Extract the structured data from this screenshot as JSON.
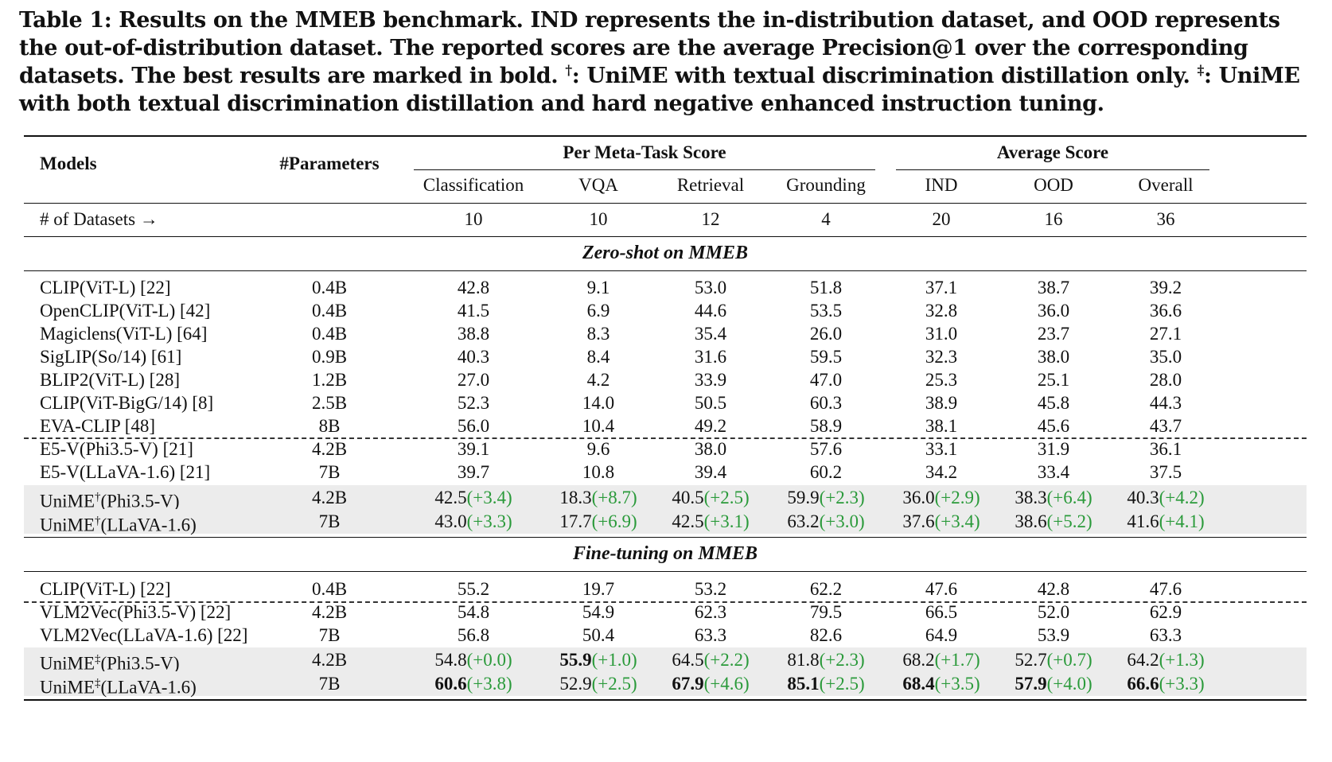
{
  "caption": {
    "part1": "Table 1: Results on the MMEB benchmark. IND represents the in-distribution dataset, and OOD represents the out-of-distribution dataset. The reported scores are the average Precision@1 over the corresponding datasets. The best results are marked in bold.",
    "dagger": "†",
    "part2": ": UniME with textual discrimination distillation only.",
    "ddagger": "‡",
    "part3": ": UniME with both textual discrimination distillation and hard negative enhanced instruction tuning."
  },
  "header": {
    "models": "Models",
    "params": "#Parameters",
    "group1": "Per Meta-Task Score",
    "group2": "Average Score",
    "cols": [
      "Classification",
      "VQA",
      "Retrieval",
      "Grounding",
      "IND",
      "OOD",
      "Overall"
    ],
    "datasets_label": "# of Datasets →",
    "datasets": [
      "10",
      "10",
      "12",
      "4",
      "20",
      "16",
      "36"
    ]
  },
  "zero_shot": {
    "title": "Zero-shot on MMEB",
    "rows": [
      {
        "model": "CLIP(ViT-L) [22]",
        "params": "0.4B",
        "vals": [
          "42.8",
          "9.1",
          "53.0",
          "51.8",
          "37.1",
          "38.7",
          "39.2"
        ]
      },
      {
        "model": "OpenCLIP(ViT-L) [42]",
        "params": "0.4B",
        "vals": [
          "41.5",
          "6.9",
          "44.6",
          "53.5",
          "32.8",
          "36.0",
          "36.6"
        ]
      },
      {
        "model": "Magiclens(ViT-L) [64]",
        "params": "0.4B",
        "vals": [
          "38.8",
          "8.3",
          "35.4",
          "26.0",
          "31.0",
          "23.7",
          "27.1"
        ]
      },
      {
        "model": "SigLIP(So/14) [61]",
        "params": "0.9B",
        "vals": [
          "40.3",
          "8.4",
          "31.6",
          "59.5",
          "32.3",
          "38.0",
          "35.0"
        ]
      },
      {
        "model": "BLIP2(ViT-L) [28]",
        "params": "1.2B",
        "vals": [
          "27.0",
          "4.2",
          "33.9",
          "47.0",
          "25.3",
          "25.1",
          "28.0"
        ]
      },
      {
        "model": "CLIP(ViT-BigG/14) [8]",
        "params": "2.5B",
        "vals": [
          "52.3",
          "14.0",
          "50.5",
          "60.3",
          "38.9",
          "45.8",
          "44.3"
        ]
      },
      {
        "model": "EVA-CLIP [48]",
        "params": "8B",
        "vals": [
          "56.0",
          "10.4",
          "49.2",
          "58.9",
          "38.1",
          "45.6",
          "43.7"
        ]
      },
      {
        "model": "E5-V(Phi3.5-V) [21]",
        "params": "4.2B",
        "vals": [
          "39.1",
          "9.6",
          "38.0",
          "57.6",
          "33.1",
          "31.9",
          "36.1"
        ]
      },
      {
        "model": "E5-V(LLaVA-1.6) [21]",
        "params": "7B",
        "vals": [
          "39.7",
          "10.8",
          "39.4",
          "60.2",
          "34.2",
          "33.4",
          "37.5"
        ]
      }
    ],
    "unime_rows": [
      {
        "name": "UniME",
        "mark": "†",
        "suffix": "(Phi3.5-V)",
        "params": "4.2B",
        "vals": [
          "42.5",
          "18.3",
          "40.5",
          "59.9",
          "36.0",
          "38.3",
          "40.3"
        ],
        "deltas": [
          "(+3.4)",
          "(+8.7)",
          "(+2.5)",
          "(+2.3)",
          "(+2.9)",
          "(+6.4)",
          "(+4.2)"
        ]
      },
      {
        "name": "UniME",
        "mark": "†",
        "suffix": "(LLaVA-1.6)",
        "params": "7B",
        "vals": [
          "43.0",
          "17.7",
          "42.5",
          "63.2",
          "37.6",
          "38.6",
          "41.6"
        ],
        "deltas": [
          "(+3.3)",
          "(+6.9)",
          "(+3.1)",
          "(+3.0)",
          "(+3.4)",
          "(+5.2)",
          "(+4.1)"
        ]
      }
    ]
  },
  "fine_tuning": {
    "title": "Fine-tuning on MMEB",
    "rows": [
      {
        "model": "CLIP(ViT-L) [22]",
        "params": "0.4B",
        "vals": [
          "55.2",
          "19.7",
          "53.2",
          "62.2",
          "47.6",
          "42.8",
          "47.6"
        ]
      },
      {
        "model": "VLM2Vec(Phi3.5-V) [22]",
        "params": "4.2B",
        "vals": [
          "54.8",
          "54.9",
          "62.3",
          "79.5",
          "66.5",
          "52.0",
          "62.9"
        ]
      },
      {
        "model": "VLM2Vec(LLaVA-1.6) [22]",
        "params": "7B",
        "vals": [
          "56.8",
          "50.4",
          "63.3",
          "82.6",
          "64.9",
          "53.9",
          "63.3"
        ]
      }
    ],
    "unime_rows": [
      {
        "name": "UniME",
        "mark": "‡",
        "suffix": "(Phi3.5-V)",
        "params": "4.2B",
        "vals": [
          "54.8",
          "55.9",
          "64.5",
          "81.8",
          "68.2",
          "52.7",
          "64.2"
        ],
        "deltas": [
          "(+0.0)",
          "(+1.0)",
          "(+2.2)",
          "(+2.3)",
          "(+1.7)",
          "(+0.7)",
          "(+1.3)"
        ],
        "bold": [
          false,
          true,
          false,
          false,
          false,
          false,
          false
        ]
      },
      {
        "name": "UniME",
        "mark": "‡",
        "suffix": "(LLaVA-1.6)",
        "params": "7B",
        "vals": [
          "60.6",
          "52.9",
          "67.9",
          "85.1",
          "68.4",
          "57.9",
          "66.6"
        ],
        "deltas": [
          "(+3.8)",
          "(+2.5)",
          "(+4.6)",
          "(+2.5)",
          "(+3.5)",
          "(+4.0)",
          "(+3.3)"
        ],
        "bold": [
          true,
          false,
          true,
          true,
          true,
          true,
          true
        ]
      }
    ]
  },
  "colors": {
    "delta": "#2a9a3a",
    "shade": "#ececec"
  }
}
